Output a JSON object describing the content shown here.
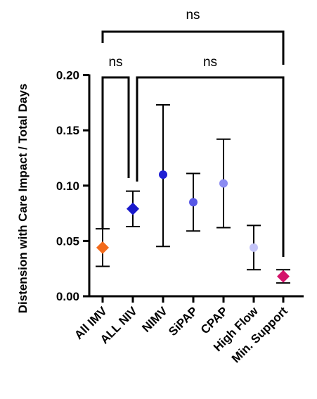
{
  "chart_data": {
    "type": "scatter",
    "ylabel": "Distension with Care Impact / Total Days",
    "ylim": [
      0,
      0.2
    ],
    "yticks": [
      "0.00",
      "0.05",
      "0.10",
      "0.15",
      "0.20"
    ],
    "ytick_values": [
      0,
      0.05,
      0.1,
      0.15,
      0.2
    ],
    "categories": [
      "All IMV",
      "ALL NIV",
      "NIMV",
      "SiPAP",
      "CPAP",
      "High Flow",
      "Min. Support"
    ],
    "points": [
      {
        "category": "All IMV",
        "y": 0.044,
        "low": 0.027,
        "high": 0.061,
        "marker": "diamond",
        "color": "#f36b1c"
      },
      {
        "category": "ALL NIV",
        "y": 0.079,
        "low": 0.063,
        "high": 0.095,
        "marker": "diamond",
        "color": "#1a1acc"
      },
      {
        "category": "NIMV",
        "y": 0.11,
        "low": 0.045,
        "high": 0.173,
        "marker": "circle",
        "color": "#2020d4"
      },
      {
        "category": "SiPAP",
        "y": 0.085,
        "low": 0.059,
        "high": 0.111,
        "marker": "circle",
        "color": "#5858e6"
      },
      {
        "category": "CPAP",
        "y": 0.102,
        "low": 0.062,
        "high": 0.142,
        "marker": "circle",
        "color": "#8c8cf2"
      },
      {
        "category": "High Flow",
        "y": 0.044,
        "low": 0.024,
        "high": 0.064,
        "marker": "circle",
        "color": "#c4c4f8"
      },
      {
        "category": "Min. Support",
        "y": 0.018,
        "low": 0.012,
        "high": 0.024,
        "marker": "diamond",
        "color": "#d4146a"
      }
    ],
    "annotations": [
      {
        "label": "ns",
        "from": "All IMV",
        "to": "Min. Support",
        "level": 0.24
      },
      {
        "label": "ns",
        "from": "All IMV",
        "to": "ALL NIV",
        "level": 0.2
      },
      {
        "label": "ns",
        "from": "ALL NIV",
        "to": "Min. Support",
        "level": 0.2
      }
    ]
  }
}
